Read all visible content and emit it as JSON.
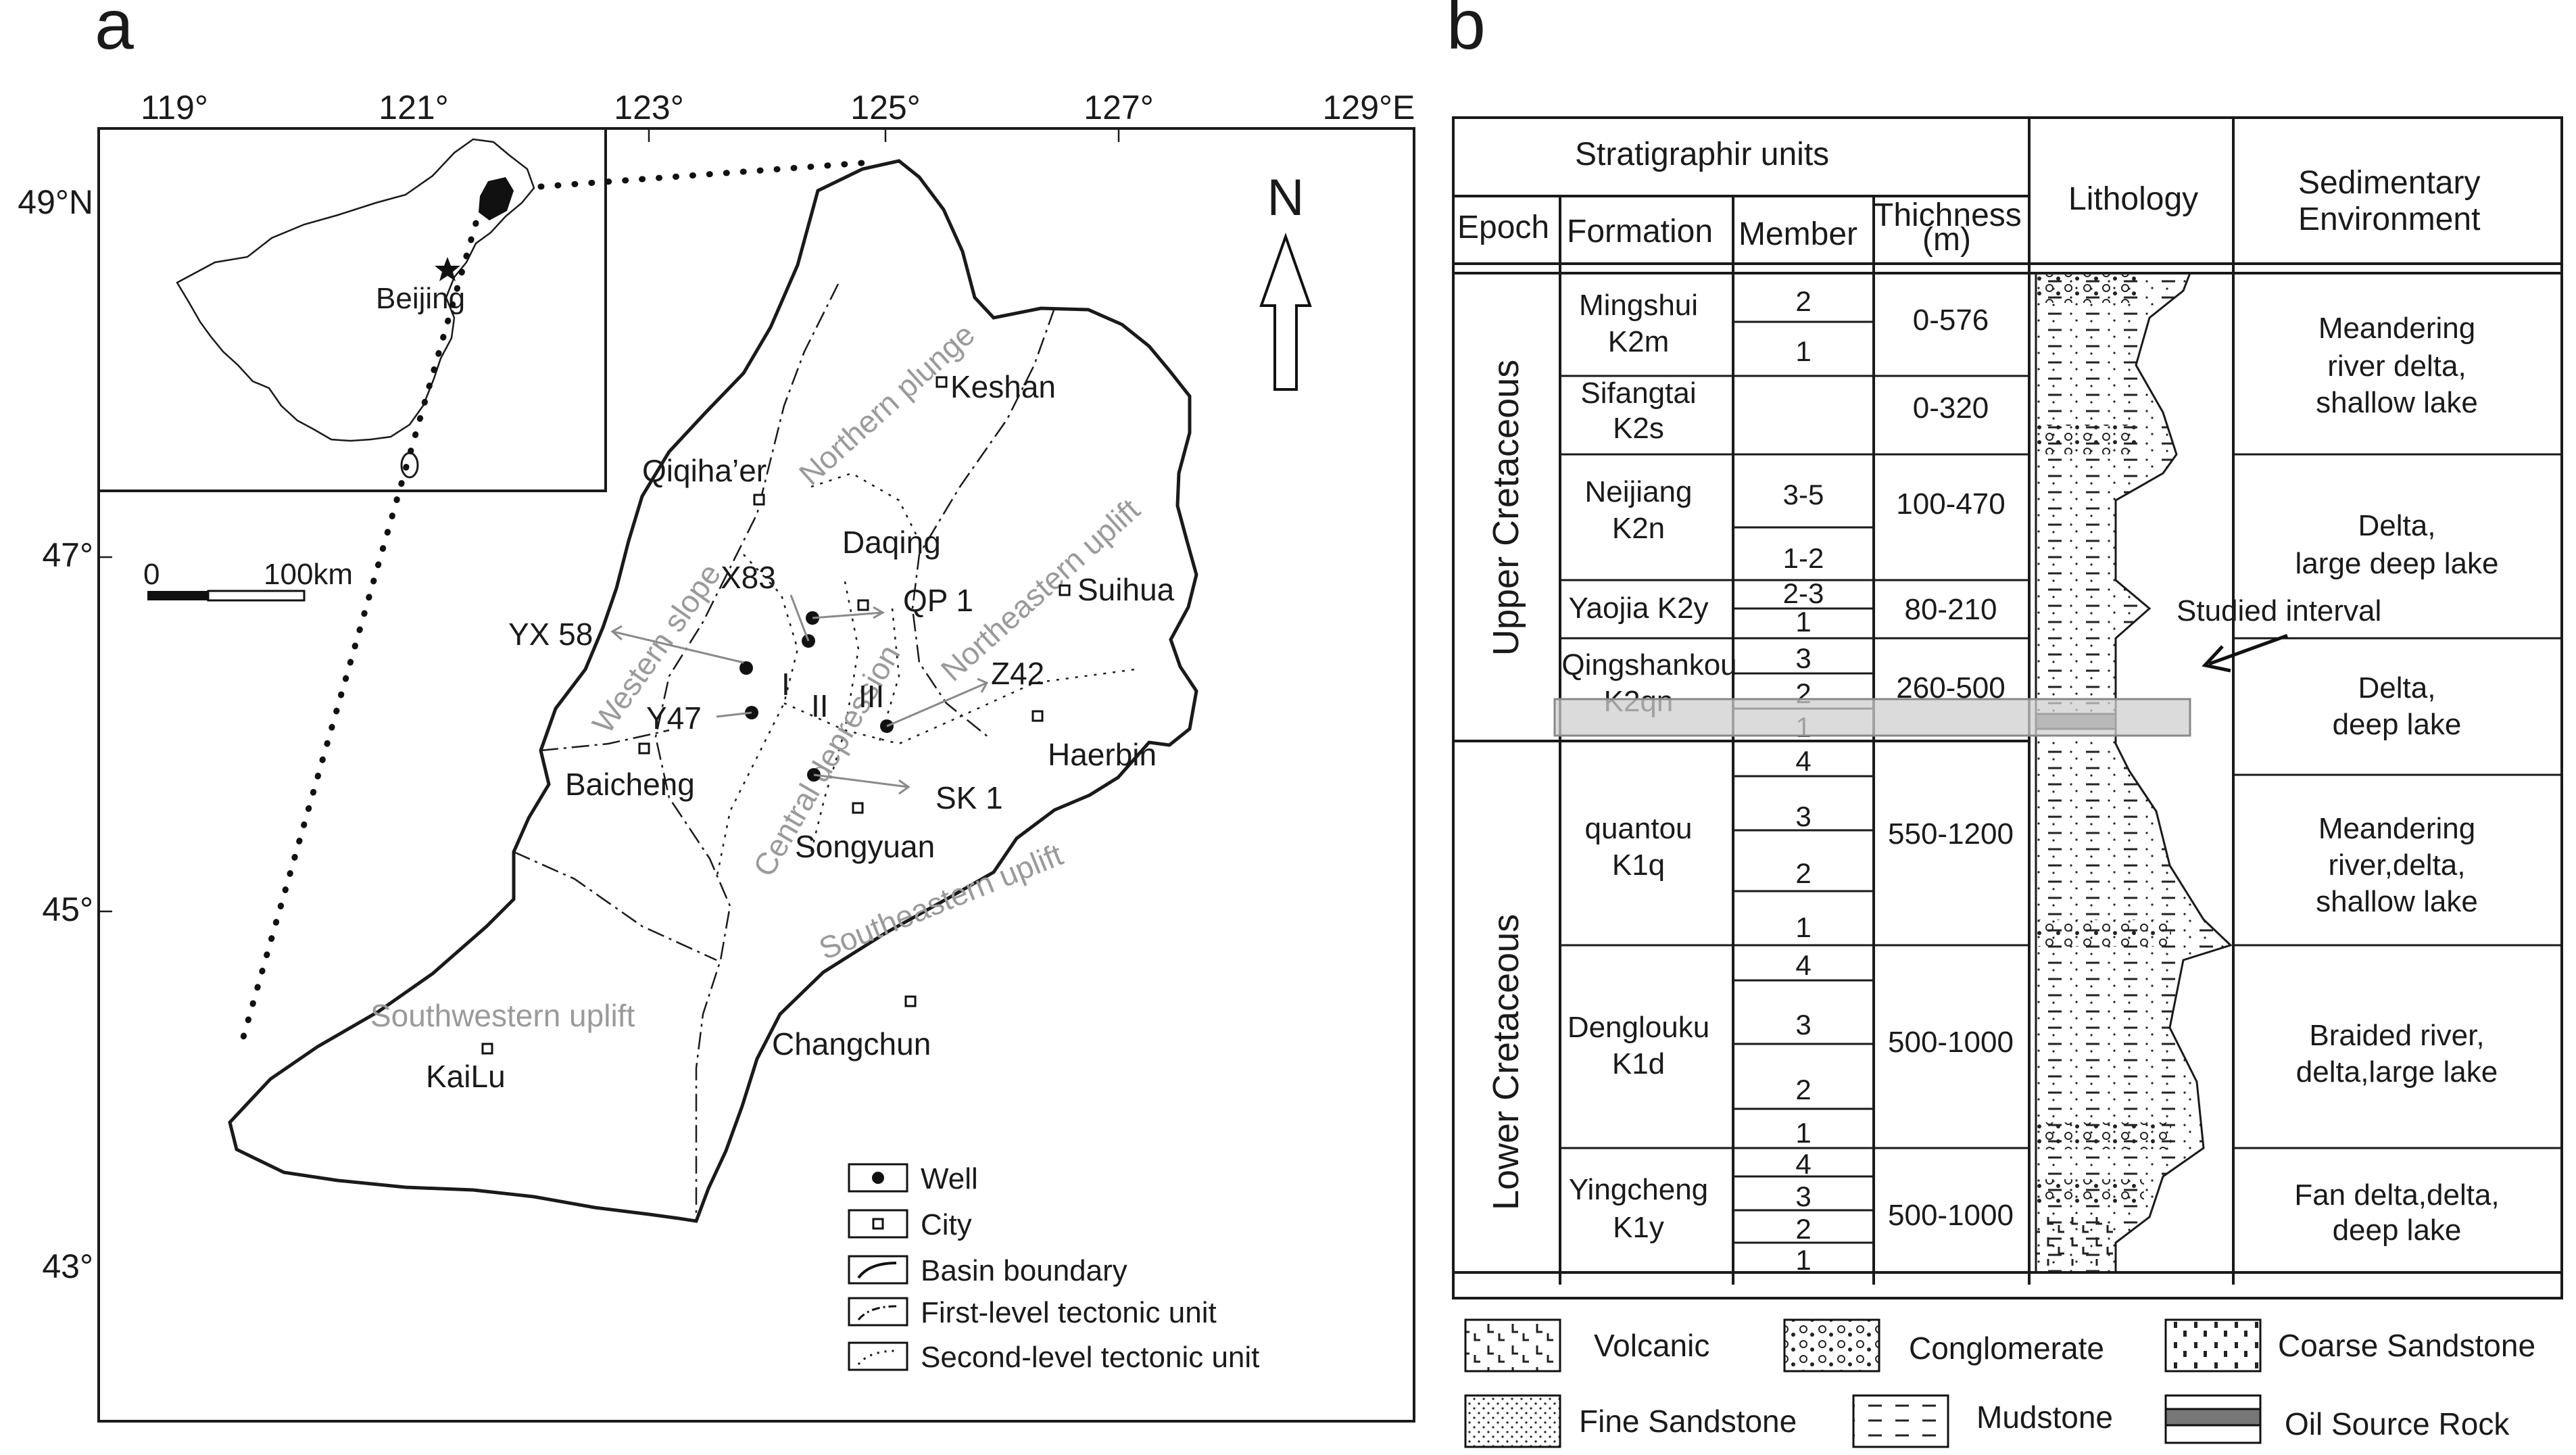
{
  "panel_a": {
    "label": "a",
    "lon_ticks": [
      "119°",
      "121°",
      "123°",
      "125°",
      "127°",
      "129°E"
    ],
    "lat_ticks": [
      "49°N",
      "47°",
      "45°",
      "43°"
    ],
    "north": "N",
    "inset_city": "Beijing",
    "scale_start": "0",
    "scale_end": "100km",
    "cities": [
      {
        "name": "Keshan"
      },
      {
        "name": "Qiqiha’er"
      },
      {
        "name": "Daqing"
      },
      {
        "name": "Suihua"
      },
      {
        "name": "Baicheng"
      },
      {
        "name": "Haerbin"
      },
      {
        "name": "Songyuan"
      },
      {
        "name": "Changchun"
      },
      {
        "name": "KaiLu"
      }
    ],
    "wells": [
      "X83",
      "QP 1",
      "YX 58",
      "Y47",
      "Z42",
      "SK 1"
    ],
    "unit_numerals": [
      "I",
      "II",
      "III"
    ],
    "tectonic_units": {
      "northern_plunge": "Northern plunge",
      "northeastern_uplift": "Northeastern uplift",
      "western_slope": "Western slope",
      "central_depression": "Central depression",
      "southeastern_uplift": "Southeastern uplift",
      "southwestern_uplift": "Southwestern uplift"
    },
    "legend": [
      "Well",
      "City",
      "Basin boundary",
      "First-level tectonic unit",
      "Second-level tectonic unit"
    ]
  },
  "panel_b": {
    "label": "b",
    "headers": {
      "strat_units": "Stratigraphir units",
      "epoch": "Epoch",
      "formation": "Formation",
      "member": "Member",
      "thickness": "Thichness",
      "thickness_unit": "(m)",
      "lithology": "Lithology",
      "env_line1": "Sedimentary",
      "env_line2": "Environment"
    },
    "epochs": [
      "Upper Cretaceous",
      "Lower Cretaceous"
    ],
    "formations": [
      {
        "name1": "Mingshui",
        "name2": "K2m",
        "members": [
          "2",
          "1"
        ],
        "thickness": "0-576"
      },
      {
        "name1": "Sifangtai",
        "name2": "K2s",
        "members": [],
        "thickness": "0-320"
      },
      {
        "name1": "Neijiang",
        "name2": "K2n",
        "members": [
          "3-5",
          "1-2"
        ],
        "thickness": "100-470"
      },
      {
        "name1": "Yaojia K2y",
        "name2": "",
        "members": [
          "2-3",
          "1"
        ],
        "thickness": "80-210"
      },
      {
        "name1": "Qingshankou",
        "name2": "K2qn",
        "members": [
          "3",
          "2",
          "1"
        ],
        "thickness": "260-500"
      },
      {
        "name1": "quantou",
        "name2": "K1q",
        "members": [
          "4",
          "3",
          "2",
          "1"
        ],
        "thickness": "550-1200"
      },
      {
        "name1": "Denglouku",
        "name2": "K1d",
        "members": [
          "4",
          "3",
          "2",
          "1"
        ],
        "thickness": "500-1000"
      },
      {
        "name1": "Yingcheng",
        "name2": "K1y",
        "members": [
          "4",
          "3",
          "2",
          "1"
        ],
        "thickness": "500-1000"
      }
    ],
    "environments": [
      [
        "Meandering",
        "river delta,",
        "shallow lake"
      ],
      [
        "Delta,",
        "large deep lake"
      ],
      [
        "Delta,",
        "deep lake"
      ],
      [
        "Meandering",
        "river,delta,",
        "shallow lake"
      ],
      [
        "Braided river,",
        "delta,large lake"
      ],
      [
        "Fan delta,delta,",
        "deep lake"
      ]
    ],
    "studied_interval": "Studied interval",
    "legend": [
      "Volcanic",
      "Conglomerate",
      "Coarse Sandstone",
      "Fine Sandstone",
      "Mudstone",
      "Oil Source Rock"
    ]
  }
}
